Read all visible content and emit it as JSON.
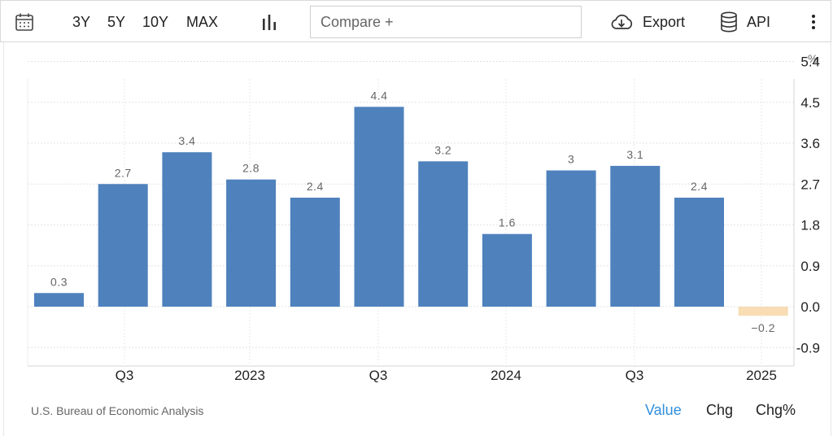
{
  "toolbar": {
    "calendar_icon": "calendar-icon",
    "ranges": [
      "3Y",
      "5Y",
      "10Y",
      "MAX"
    ],
    "chart_type_icon": "bar-chart-icon",
    "compare_placeholder": "Compare +",
    "export_label": "Export",
    "export_icon": "cloud-download-icon",
    "api_label": "API",
    "api_icon": "database-icon",
    "more_icon": "more-vertical-icon"
  },
  "footer": {
    "source": "U.S. Bureau of Economic Analysis",
    "modes": [
      "Value",
      "Chg",
      "Chg%"
    ],
    "active_mode": "Value"
  },
  "colors": {
    "bar_positive": "#4f81bd",
    "bar_negative": "#f7dcb4",
    "active_mode": "#2f8fde"
  },
  "chart_data": {
    "type": "bar",
    "unit": "%",
    "values": [
      0.3,
      2.7,
      3.4,
      2.8,
      2.4,
      4.4,
      3.2,
      1.6,
      3.0,
      3.1,
      2.4,
      -0.2
    ],
    "data_labels": [
      "0.3",
      "2.7",
      "3.4",
      "2.8",
      "2.4",
      "4.4",
      "3.2",
      "1.6",
      "3",
      "3.1",
      "2.4",
      "-0.2"
    ],
    "x_tick_labels": [
      "Q3",
      "2023",
      "Q3",
      "2024",
      "Q3",
      "2025"
    ],
    "y_ticks": [
      "5.4",
      "4.5",
      "3.6",
      "2.7",
      "1.8",
      "0.9",
      "0.0",
      "-0.9"
    ],
    "ylim": [
      -1.4,
      5.4
    ],
    "axis_position": "right",
    "grid": true
  }
}
